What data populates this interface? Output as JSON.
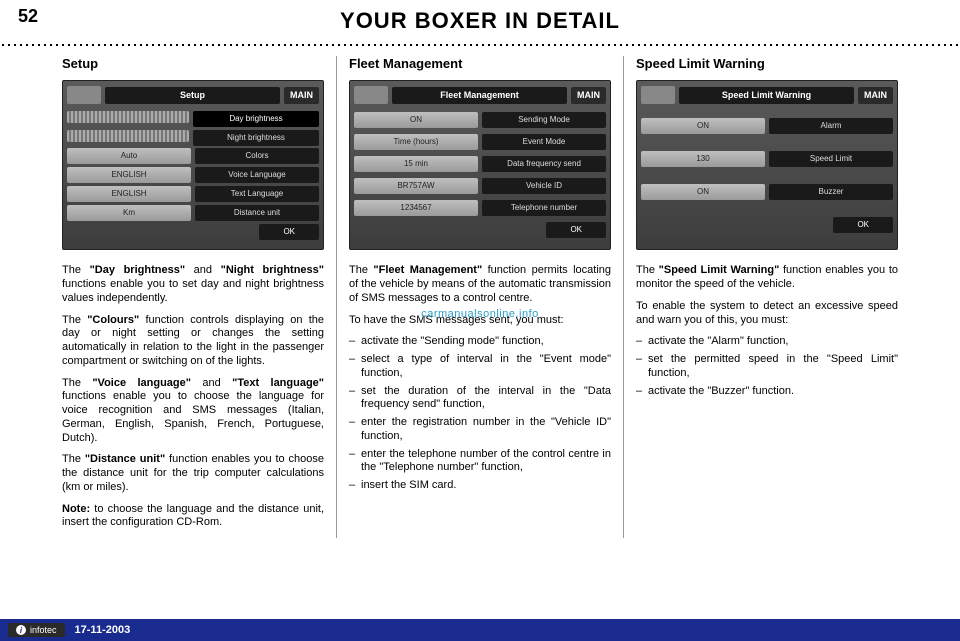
{
  "page_number": "52",
  "page_title": "YOUR BOXER IN DETAIL",
  "watermark": "carmanualsonline.info",
  "footer": {
    "logo": "infotec",
    "date": "17-11-2003"
  },
  "columns": [
    {
      "title": "Setup",
      "screen": {
        "header": "Setup",
        "main": "MAIN",
        "rows": [
          {
            "type": "slider",
            "label": "Day brightness",
            "active": true
          },
          {
            "type": "slider",
            "label": "Night brightness"
          },
          {
            "value": "Auto",
            "label": "Colors"
          },
          {
            "value": "ENGLISH",
            "label": "Voice Language"
          },
          {
            "value": "ENGLISH",
            "label": "Text Language"
          },
          {
            "value": "Km",
            "label": "Distance unit"
          }
        ],
        "ok": "OK"
      },
      "paragraphs": [
        "The <b>\"Day brightness\"</b> and <b>\"Night brightness\"</b> functions enable you to set day and night brightness values independently.",
        "The <b>\"Colours\"</b> function controls displaying on the day or night setting or changes the setting automatically in relation to the light in the passenger compartment or switching on of the lights.",
        "The <b>\"Voice language\"</b> and <b>\"Text language\"</b> functions enable you to choose the language for voice recognition and SMS messages (Italian, German, English, Spanish, French, Portuguese, Dutch).",
        "The <b>\"Distance unit\"</b> function enables you to choose the distance unit for the trip computer calculations (km or miles).",
        "<b>Note:</b> to choose the language and the distance unit, insert the configuration CD-Rom."
      ],
      "bullets": []
    },
    {
      "title": "Fleet Management",
      "screen": {
        "header": "Fleet Management",
        "main": "MAIN",
        "rows": [
          {
            "value": "ON",
            "label": "Sending Mode"
          },
          {
            "value": "Time (hours)",
            "label": "Event Mode"
          },
          {
            "value": "15 min",
            "label": "Data frequency send"
          },
          {
            "value": "BR757AW",
            "label": "Vehicle ID"
          },
          {
            "value": "1234567",
            "label": "Telephone number"
          }
        ],
        "ok": "OK"
      },
      "paragraphs": [
        "The <b>\"Fleet Management\"</b> function permits locating of the vehicle by means of the automatic transmission of SMS messages to a control centre.",
        "To have the SMS messages sent, you must:"
      ],
      "bullets": [
        "activate the \"Sending mode\" function,",
        "select a type of interval in the \"Event mode\" function,",
        "set the duration of the interval in the \"Data frequency send\" function,",
        "enter the registration number in the \"Vehicle ID\" function,",
        "enter the telephone number of the control centre in the \"Telephone number\" function,",
        "insert the SIM card."
      ]
    },
    {
      "title": "Speed Limit Warning",
      "screen": {
        "header": "Speed Limit Warning",
        "main": "MAIN",
        "rows": [
          {
            "value": "ON",
            "label": "Alarm"
          },
          {
            "value": "130",
            "label": "Speed Limit"
          },
          {
            "value": "ON",
            "label": "Buzzer"
          }
        ],
        "ok": "OK"
      },
      "paragraphs": [
        "The <b>\"Speed Limit Warning\"</b> function enables you to monitor the speed of the vehicle.",
        "To enable the system to detect an excessive speed and warn you of this, you must:"
      ],
      "bullets": [
        "activate the \"Alarm\" function,",
        "set the permitted speed in the \"Speed Limit\" function,",
        "activate the \"Buzzer\" function."
      ]
    }
  ]
}
